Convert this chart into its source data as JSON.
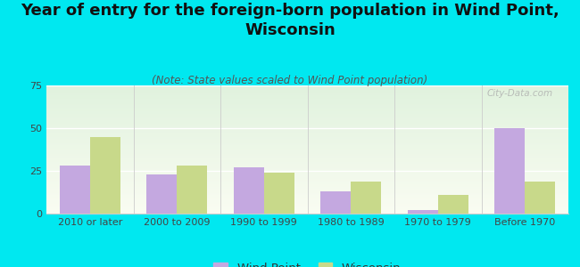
{
  "title": "Year of entry for the foreign-born population in Wind Point,\nWisconsin",
  "subtitle": "(Note: State values scaled to Wind Point population)",
  "categories": [
    "2010 or later",
    "2000 to 2009",
    "1990 to 1999",
    "1980 to 1989",
    "1970 to 1979",
    "Before 1970"
  ],
  "wind_point_values": [
    28,
    23,
    27,
    13,
    2,
    50
  ],
  "wisconsin_values": [
    45,
    28,
    24,
    19,
    11,
    19
  ],
  "wind_point_color": "#c4a8e0",
  "wisconsin_color": "#c8d98a",
  "background_color": "#00e8f0",
  "ylim": [
    0,
    75
  ],
  "yticks": [
    0,
    25,
    50,
    75
  ],
  "title_fontsize": 13,
  "subtitle_fontsize": 8.5,
  "tick_fontsize": 8,
  "legend_fontsize": 9.5,
  "watermark": "City-Data.com"
}
